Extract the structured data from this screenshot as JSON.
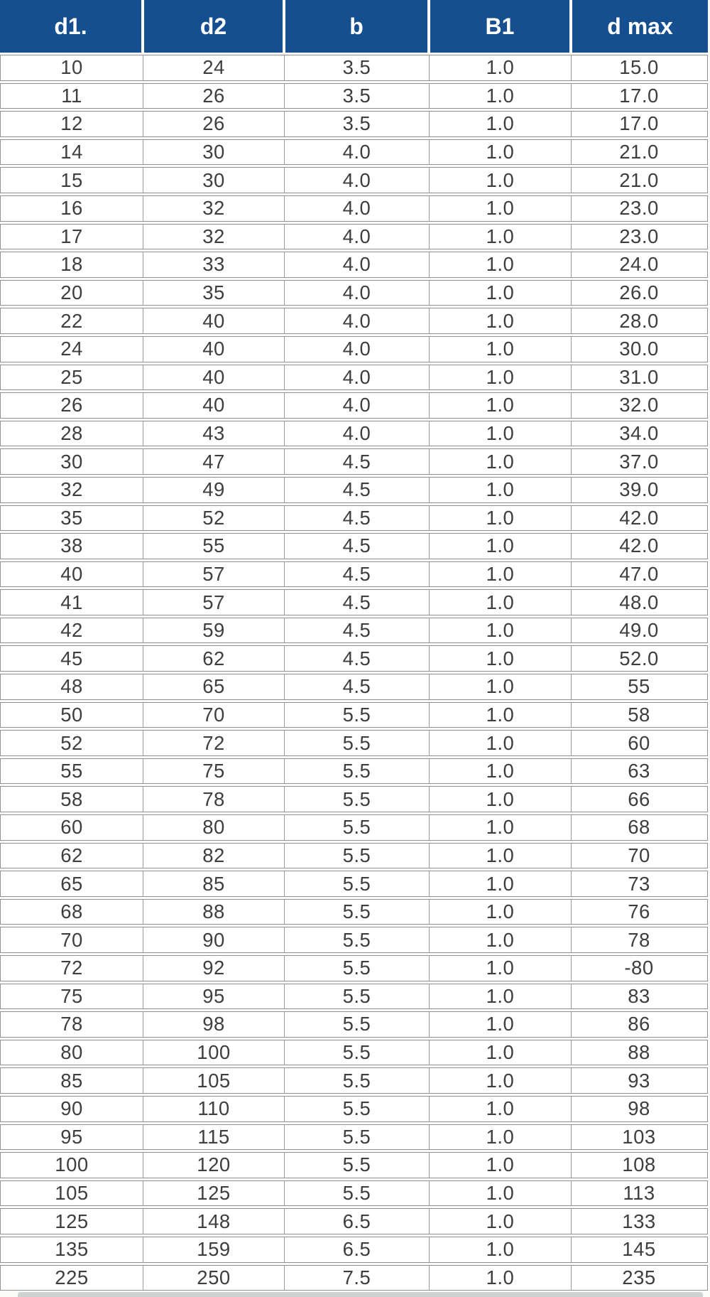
{
  "table": {
    "columns": [
      "d1.",
      "d2",
      "b",
      "B1",
      "d max"
    ],
    "rows": [
      [
        "10",
        "24",
        "3.5",
        "1.0",
        "15.0"
      ],
      [
        "11",
        "26",
        "3.5",
        "1.0",
        "17.0"
      ],
      [
        "12",
        "26",
        "3.5",
        "1.0",
        "17.0"
      ],
      [
        "14",
        "30",
        "4.0",
        "1.0",
        "21.0"
      ],
      [
        "15",
        "30",
        "4.0",
        "1.0",
        "21.0"
      ],
      [
        "16",
        "32",
        "4.0",
        "1.0",
        "23.0"
      ],
      [
        "17",
        "32",
        "4.0",
        "1.0",
        "23.0"
      ],
      [
        "18",
        "33",
        "4.0",
        "1.0",
        "24.0"
      ],
      [
        "20",
        "35",
        "4.0",
        "1.0",
        "26.0"
      ],
      [
        "22",
        "40",
        "4.0",
        "1.0",
        "28.0"
      ],
      [
        "24",
        "40",
        "4.0",
        "1.0",
        "30.0"
      ],
      [
        "25",
        "40",
        "4.0",
        "1.0",
        "31.0"
      ],
      [
        "26",
        "40",
        "4.0",
        "1.0",
        "32.0"
      ],
      [
        "28",
        "43",
        "4.0",
        "1.0",
        "34.0"
      ],
      [
        "30",
        "47",
        "4.5",
        "1.0",
        "37.0"
      ],
      [
        "32",
        "49",
        "4.5",
        "1.0",
        "39.0"
      ],
      [
        "35",
        "52",
        "4.5",
        "1.0",
        "42.0"
      ],
      [
        "38",
        "55",
        "4.5",
        "1.0",
        "42.0"
      ],
      [
        "40",
        "57",
        "4.5",
        "1.0",
        "47.0"
      ],
      [
        "41",
        "57",
        "4.5",
        "1.0",
        "48.0"
      ],
      [
        "42",
        "59",
        "4.5",
        "1.0",
        "49.0"
      ],
      [
        "45",
        "62",
        "4.5",
        "1.0",
        "52.0"
      ],
      [
        "48",
        "65",
        "4.5",
        "1.0",
        "55"
      ],
      [
        "50",
        "70",
        "5.5",
        "1.0",
        "58"
      ],
      [
        "52",
        "72",
        "5.5",
        "1.0",
        "60"
      ],
      [
        "55",
        "75",
        "5.5",
        "1.0",
        "63"
      ],
      [
        "58",
        "78",
        "5.5",
        "1.0",
        "66"
      ],
      [
        "60",
        "80",
        "5.5",
        "1.0",
        "68"
      ],
      [
        "62",
        "82",
        "5.5",
        "1.0",
        "70"
      ],
      [
        "65",
        "85",
        "5.5",
        "1.0",
        "73"
      ],
      [
        "68",
        "88",
        "5.5",
        "1.0",
        "76"
      ],
      [
        "70",
        "90",
        "5.5",
        "1.0",
        "78"
      ],
      [
        "72",
        "92",
        "5.5",
        "1.0",
        "-80"
      ],
      [
        "75",
        "95",
        "5.5",
        "1.0",
        "83"
      ],
      [
        "78",
        "98",
        "5.5",
        "1.0",
        "86"
      ],
      [
        "80",
        "100",
        "5.5",
        "1.0",
        "88"
      ],
      [
        "85",
        "105",
        "5.5",
        "1.0",
        "93"
      ],
      [
        "90",
        "110",
        "5.5",
        "1.0",
        "98"
      ],
      [
        "95",
        "115",
        "5.5",
        "1.0",
        "103"
      ],
      [
        "100",
        "120",
        "5.5",
        "1.0",
        "108"
      ],
      [
        "105",
        "125",
        "5.5",
        "1.0",
        "113"
      ],
      [
        "125",
        "148",
        "6.5",
        "1.0",
        "133"
      ],
      [
        "135",
        "159",
        "6.5",
        "1.0",
        "145"
      ],
      [
        "225",
        "250",
        "7.5",
        "1.0",
        "235"
      ]
    ]
  },
  "colors": {
    "header_bg": "#164f90",
    "header_text": "#ffffff",
    "cell_text": "#3e3e3e",
    "grid_line": "#9a9a9a",
    "row_bg": "#ffffff",
    "bottom_strip": "#ccd3d0"
  }
}
